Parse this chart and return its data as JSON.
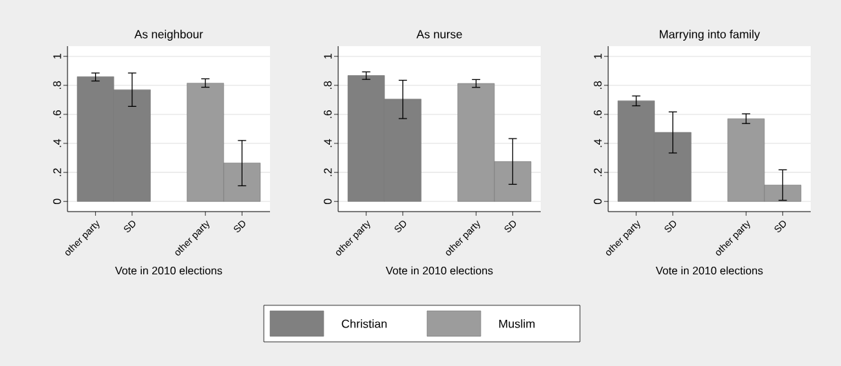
{
  "chart_data": [
    {
      "type": "bar",
      "title": "As neighbour",
      "xlabel": "Vote in 2010 elections",
      "categories": [
        "other party",
        "SD",
        "other party",
        "SD"
      ],
      "ylim": [
        -0.07,
        1.07
      ],
      "yticks": [
        0,
        {
          "value": 0.2,
          "label": ".2"
        },
        {
          "value": 0.4,
          "label": ".4"
        },
        {
          "value": 0.6,
          "label": ".6"
        },
        {
          "value": 0.8,
          "label": ".8"
        },
        1
      ],
      "grid": "y",
      "legend": "bottom",
      "series": [
        {
          "name": "Christian",
          "color": "#808080",
          "values": [
            0.86,
            0.77,
            null,
            null
          ],
          "errors": [
            [
              0.83,
              0.885
            ],
            [
              0.655,
              0.885
            ],
            null,
            null
          ]
        },
        {
          "name": "Muslim",
          "color": "#9c9c9c",
          "values": [
            null,
            null,
            0.815,
            0.265
          ],
          "errors": [
            null,
            null,
            [
              0.787,
              0.845
            ],
            [
              0.108,
              0.42
            ]
          ]
        }
      ]
    },
    {
      "type": "bar",
      "title": "As nurse",
      "xlabel": "Vote in 2010 elections",
      "categories": [
        "other party",
        "SD",
        "other party",
        "SD"
      ],
      "ylim": [
        -0.07,
        1.07
      ],
      "yticks": [
        0,
        {
          "value": 0.2,
          "label": ".2"
        },
        {
          "value": 0.4,
          "label": ".4"
        },
        {
          "value": 0.6,
          "label": ".6"
        },
        {
          "value": 0.8,
          "label": ".8"
        },
        1
      ],
      "grid": "y",
      "series": [
        {
          "color": "#808080",
          "values": [
            0.868,
            0.705,
            null,
            null
          ],
          "errors": [
            [
              0.841,
              0.893
            ],
            [
              0.571,
              0.835
            ],
            null,
            null
          ]
        },
        {
          "color": "#9c9c9c",
          "values": [
            null,
            null,
            0.813,
            0.275
          ],
          "errors": [
            null,
            null,
            [
              0.786,
              0.84
            ],
            [
              0.118,
              0.433
            ]
          ]
        }
      ]
    },
    {
      "type": "bar",
      "title": "Marrying into family",
      "xlabel": "Vote in 2010 elections",
      "categories": [
        "other party",
        "SD",
        "other party",
        "SD"
      ],
      "ylim": [
        -0.07,
        1.07
      ],
      "yticks": [
        0,
        {
          "value": 0.2,
          "label": ".2"
        },
        {
          "value": 0.4,
          "label": ".4"
        },
        {
          "value": 0.6,
          "label": ".6"
        },
        {
          "value": 0.8,
          "label": ".8"
        },
        1
      ],
      "grid": "y",
      "series": [
        {
          "color": "#808080",
          "values": [
            0.694,
            0.476,
            null,
            null
          ],
          "errors": [
            [
              0.659,
              0.727
            ],
            [
              0.334,
              0.617
            ],
            null,
            null
          ]
        },
        {
          "color": "#9c9c9c",
          "values": [
            null,
            null,
            0.57,
            0.113
          ],
          "errors": [
            null,
            null,
            [
              0.537,
              0.604
            ],
            [
              0.008,
              0.218
            ]
          ]
        }
      ]
    }
  ]
}
